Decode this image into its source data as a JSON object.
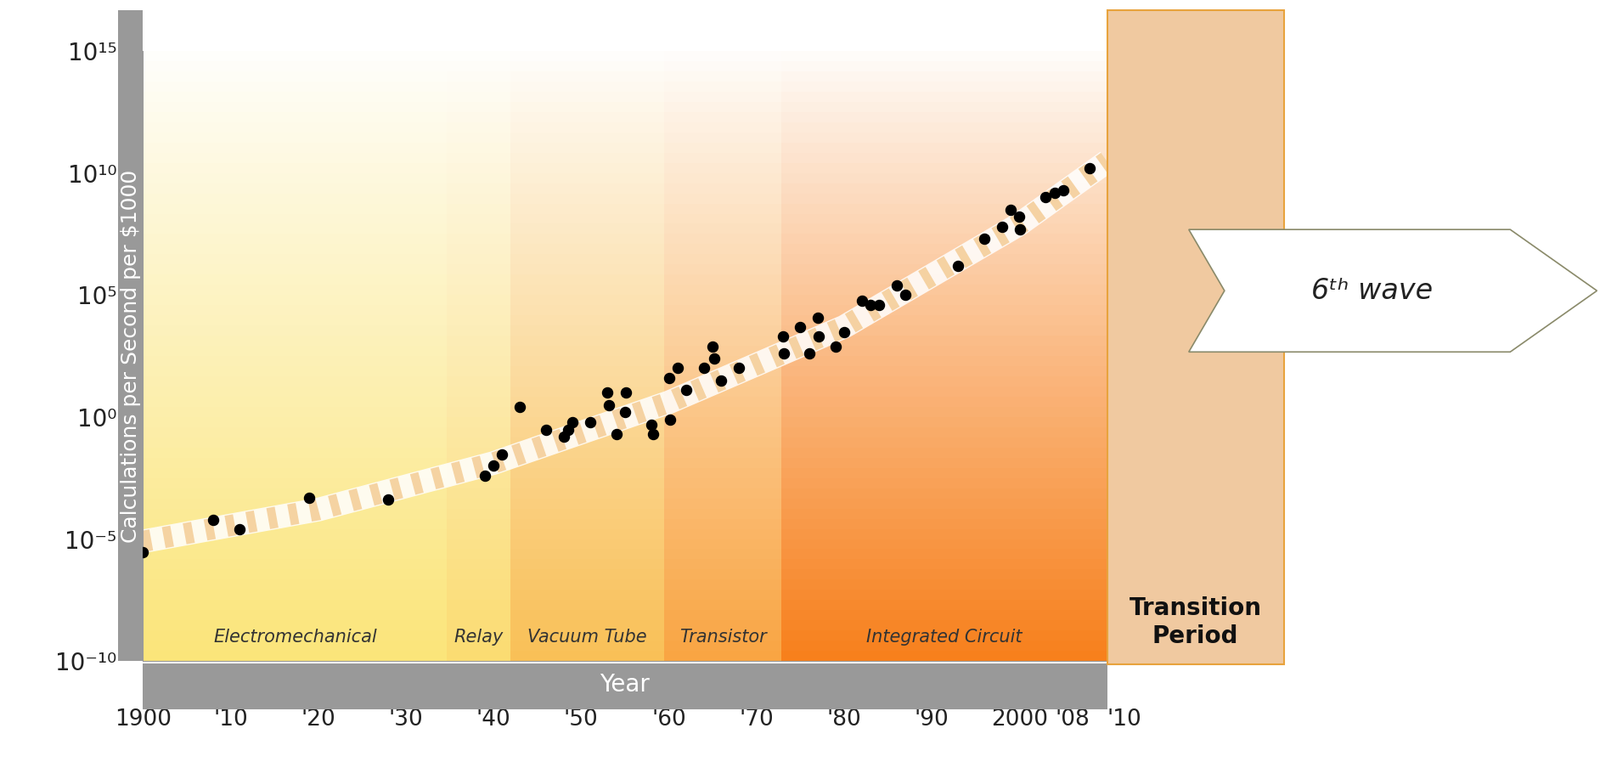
{
  "chart_data": {
    "type": "scatter",
    "y_label": "Calculations per Second per $1000",
    "x_label": "Year",
    "log": "y",
    "grid": false,
    "color": "#000000",
    "marker": "o",
    "x": [
      1900,
      1908,
      1911,
      1919,
      1928,
      1939,
      1940,
      1941,
      1943,
      1946,
      1948,
      1948.5,
      1949,
      1951,
      1953,
      1953.2,
      1954,
      1955,
      1955.1,
      1958,
      1958.2,
      1960,
      1960.1,
      1961,
      1962,
      1964,
      1965,
      1965.2,
      1966,
      1968,
      1973,
      1973.1,
      1975,
      1976,
      1977,
      1977.1,
      1979,
      1980,
      1982,
      1983,
      1984,
      1986,
      1987,
      1993,
      1996,
      1998,
      1999,
      2000,
      2000.1,
      2003,
      2004,
      2005,
      2008
    ],
    "values": [
      3e-06,
      6e-05,
      2.5e-05,
      0.0005,
      0.0004,
      0.004,
      0.01,
      0.03,
      2.5,
      0.3,
      0.16,
      0.3,
      0.6,
      0.6,
      10,
      3,
      0.2,
      1.6,
      10,
      0.5,
      0.2,
      40,
      0.8,
      100,
      13,
      100,
      800,
      250,
      30,
      100,
      2000,
      400,
      5000,
      400,
      12000,
      2000,
      800,
      3000,
      60000,
      40000,
      40000,
      250000,
      100000,
      1600000,
      20000000,
      60000000,
      300000000,
      160000000,
      50000000,
      1000000000,
      1600000000,
      2000000000,
      16000000000
    ],
    "trend": {
      "x": [
        1900,
        1920,
        1940,
        1960,
        1980,
        2000,
        2010
      ],
      "values": [
        8e-06,
        0.00016,
        0.013,
        4,
        5000,
        80000000,
        30000000000
      ]
    },
    "eras": [
      {
        "name": "Electromechanical",
        "start": 1900,
        "end": 1934.7,
        "color": "#fbe57a"
      },
      {
        "name": "Relay",
        "start": 1934.7,
        "end": 1941.9,
        "color": "#fbdc72"
      },
      {
        "name": "Vacuum Tube",
        "start": 1941.9,
        "end": 1959.5,
        "color": "#f9c057"
      },
      {
        "name": "Transistor",
        "start": 1959.5,
        "end": 1972.8,
        "color": "#f9a543"
      },
      {
        "name": "Integrated Circuit",
        "start": 1972.8,
        "end": 2010,
        "color": "#f7801c"
      }
    ],
    "transition_label": "Transition\nPeriod",
    "arrow_label": "6ᵗʰ wave",
    "xlim": [
      1900,
      2010
    ],
    "xticks": [
      1900,
      {
        "value": 1910,
        "label": "'10"
      },
      {
        "value": 1920,
        "label": "'20"
      },
      {
        "value": 1930,
        "label": "'30"
      },
      {
        "value": 1940,
        "label": "'40"
      },
      {
        "value": 1950,
        "label": "'50"
      },
      {
        "value": 1960,
        "label": "'60"
      },
      {
        "value": 1970,
        "label": "'70"
      },
      {
        "value": 1980,
        "label": "'80"
      },
      {
        "value": 1990,
        "label": "'90"
      },
      2000,
      {
        "value": 2008,
        "label": "'08"
      },
      {
        "value": 2010,
        "label": "'10"
      }
    ],
    "ylim": [
      1e-10,
      1000000000000000.0
    ],
    "yticks": [
      {
        "value": 1e-10,
        "label": "10⁻¹⁰"
      },
      {
        "value": 1e-05,
        "label": "10⁻⁵"
      },
      {
        "value": 1,
        "label": "10⁰"
      },
      {
        "value": 100000,
        "label": "10⁵"
      },
      {
        "value": 10000000000,
        "label": "10¹⁰"
      },
      {
        "value": 1000000000000000.0,
        "label": "10¹⁵"
      }
    ]
  }
}
